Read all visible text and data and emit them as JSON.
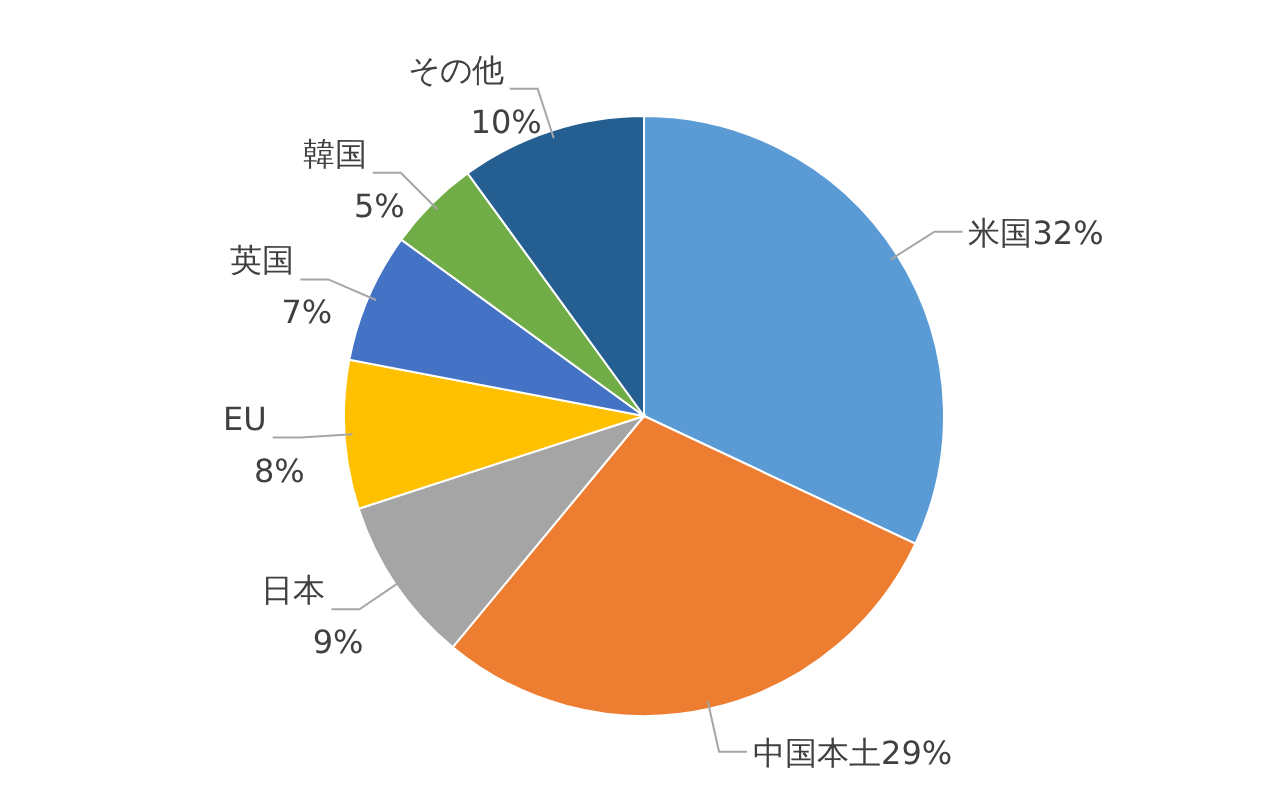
{
  "chart_data": {
    "type": "pie",
    "categories": [
      "米国",
      "中国本土",
      "日本",
      "EU",
      "英国",
      "韓国",
      "その他"
    ],
    "values": [
      32,
      29,
      9,
      8,
      7,
      5,
      10
    ],
    "colors": [
      "#5b9bd5",
      "#ed7d31",
      "#a5a5a5",
      "#ffc000",
      "#4472c4",
      "#70ad47",
      "#255e91"
    ],
    "value_labels": [
      "32%",
      "29%",
      "9%",
      "8%",
      "7%",
      "5%",
      "10%"
    ]
  }
}
